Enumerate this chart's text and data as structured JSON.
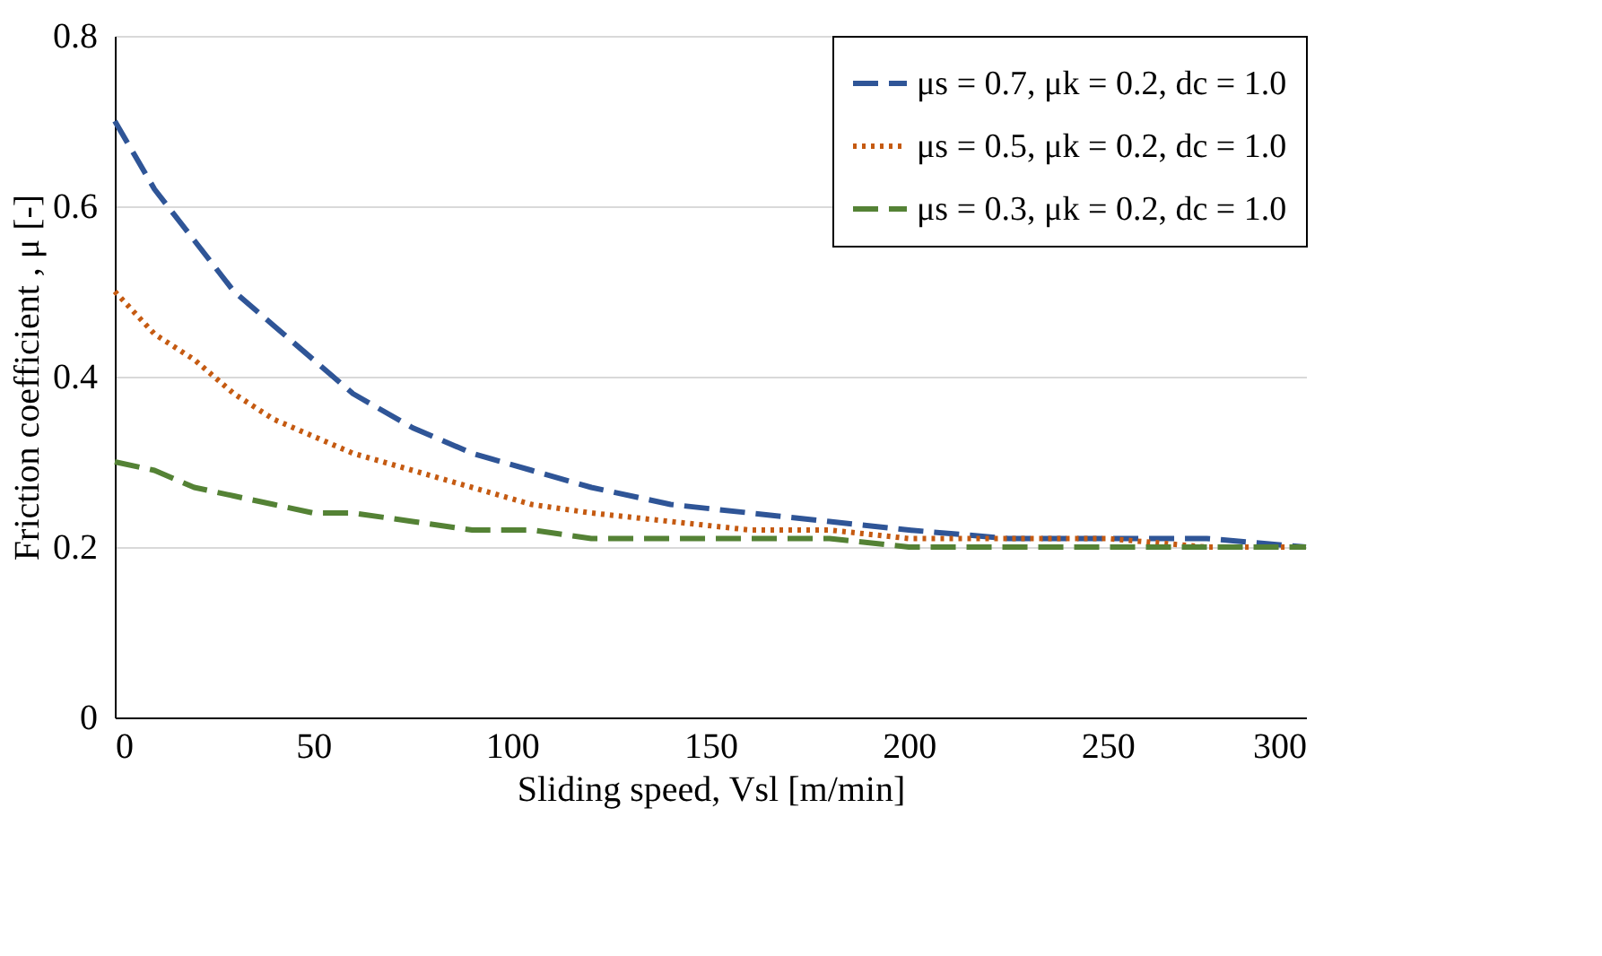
{
  "chart_data": {
    "type": "line",
    "xlabel": "Sliding speed, Vsl [m/min]",
    "ylabel": "Friction coefficient , μ [-]",
    "x": [
      0,
      10,
      20,
      30,
      40,
      50,
      60,
      75,
      90,
      105,
      120,
      140,
      160,
      180,
      200,
      225,
      250,
      275,
      300
    ],
    "series": [
      {
        "name": "μs = 0.7, μk = 0.2, dc = 1.0",
        "color": "#2f5597",
        "line_style": "dashed",
        "values": [
          0.7,
          0.62,
          0.56,
          0.5,
          0.46,
          0.42,
          0.38,
          0.34,
          0.31,
          0.29,
          0.27,
          0.25,
          0.24,
          0.23,
          0.22,
          0.21,
          0.21,
          0.21,
          0.2
        ]
      },
      {
        "name": "μs = 0.5, μk = 0.2, dc = 1.0",
        "color": "#c55a11",
        "line_style": "dotted",
        "values": [
          0.5,
          0.45,
          0.42,
          0.38,
          0.35,
          0.33,
          0.31,
          0.29,
          0.27,
          0.25,
          0.24,
          0.23,
          0.22,
          0.22,
          0.21,
          0.21,
          0.21,
          0.2,
          0.2
        ]
      },
      {
        "name": "μs = 0.3, μk = 0.2, dc = 1.0",
        "color": "#548235",
        "line_style": "dashed",
        "values": [
          0.3,
          0.29,
          0.27,
          0.26,
          0.25,
          0.24,
          0.24,
          0.23,
          0.22,
          0.22,
          0.21,
          0.21,
          0.21,
          0.21,
          0.2,
          0.2,
          0.2,
          0.2,
          0.2
        ]
      }
    ],
    "xlim": [
      0,
      300
    ],
    "xticks": [
      0,
      50,
      100,
      150,
      200,
      250,
      300
    ],
    "ylim": [
      0,
      0.8
    ],
    "yticks": [
      0,
      0.2,
      0.4,
      0.6,
      0.8
    ],
    "grid": "y",
    "legend": "top right"
  }
}
